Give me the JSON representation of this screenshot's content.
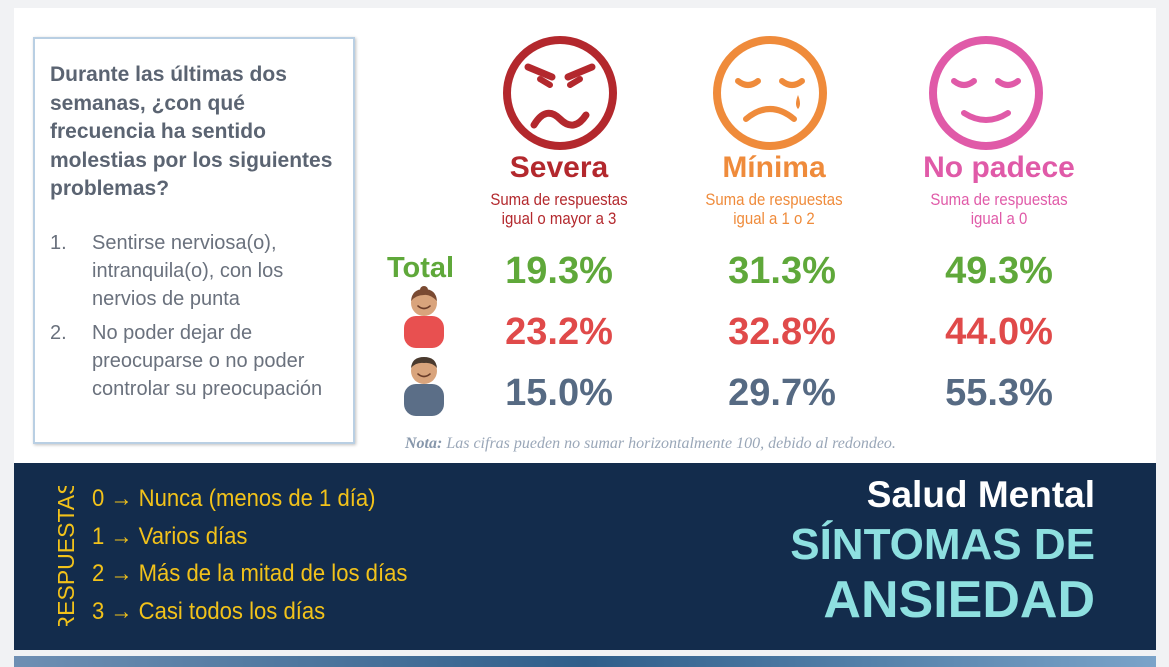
{
  "question": {
    "title": "Durante las últimas dos semanas, ¿con qué frecuencia ha sentido molestias por los siguientes problemas?",
    "items": [
      {
        "num": "1.",
        "text": "Sentirse nerviosa(o), intranquila(o), con los nervios de punta"
      },
      {
        "num": "2.",
        "text": "No poder dejar de preocuparse o no poder controlar su preocupación"
      }
    ]
  },
  "categories": [
    {
      "title": "Severa",
      "subtitle_l1": "Suma de respuestas",
      "subtitle_l2": "igual o mayor a 3",
      "color": "#b3282d",
      "icon": "angry-face-icon"
    },
    {
      "title": "Mínima",
      "subtitle_l1": "Suma de respuestas",
      "subtitle_l2": "igual a 1 o 2",
      "color": "#ef8b3b",
      "icon": "sad-face-icon"
    },
    {
      "title": "No padece",
      "subtitle_l1": "Suma de respuestas",
      "subtitle_l2": "igual a 0",
      "color": "#e05aa8",
      "icon": "calm-face-icon"
    }
  ],
  "rows": {
    "total": {
      "label": "Total",
      "values": [
        "19.3%",
        "31.3%",
        "49.3%"
      ],
      "color": "#5fa83a"
    },
    "women": {
      "icon": "woman-icon",
      "values": [
        "23.2%",
        "32.8%",
        "44.0%"
      ],
      "color": "#e04a4a"
    },
    "men": {
      "icon": "man-icon",
      "values": [
        "15.0%",
        "29.7%",
        "55.3%"
      ],
      "color": "#566a83"
    }
  },
  "note": {
    "label": "Nota:",
    "text": "Las cifras pueden no sumar horizontalmente 100, debido al redondeo."
  },
  "respuestas": {
    "label": "RESPUESTAS",
    "items": [
      "0 → Nunca (menos de 1 día)",
      "1 → Varios días",
      "2 → Más de la mitad de los días",
      "3 → Casi todos los días"
    ]
  },
  "banner": {
    "line1": "Salud Mental",
    "line2": "SÍNTOMAS DE",
    "line3": "ANSIEDAD"
  }
}
